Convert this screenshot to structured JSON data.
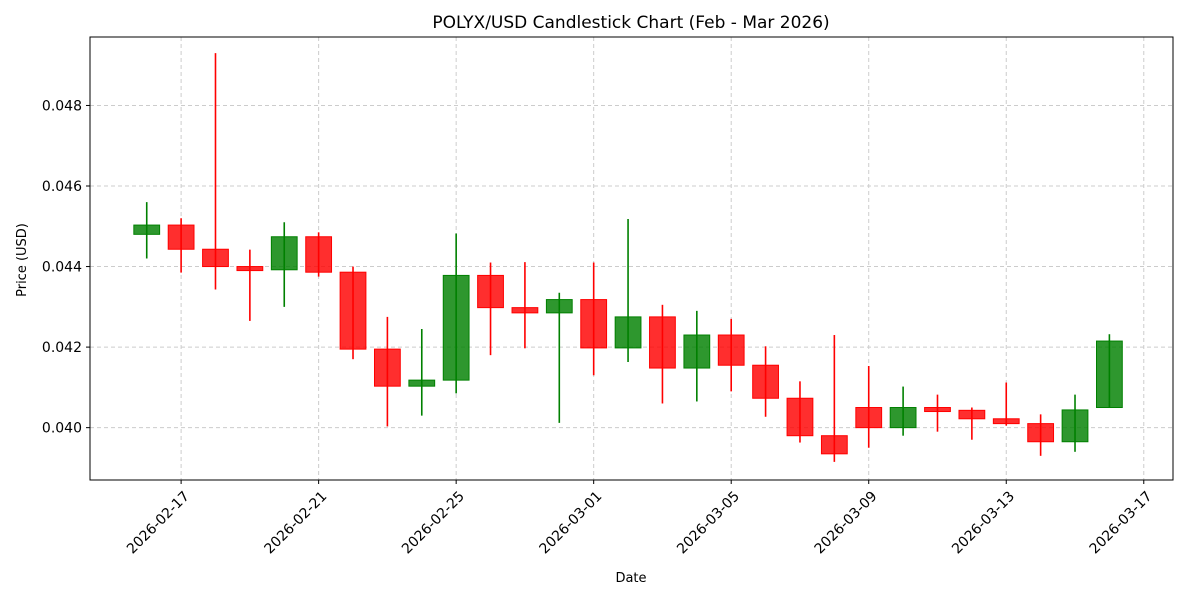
{
  "chart_data": {
    "type": "candlestick",
    "title": "POLYX/USD Candlestick Chart (Feb - Mar 2026)",
    "xlabel": "Date",
    "ylabel": "Price (USD)",
    "x_ticks": [
      "2026-02-17",
      "2026-02-21",
      "2026-02-25",
      "2026-03-01",
      "2026-03-05",
      "2026-03-09",
      "2026-03-13",
      "2026-03-17"
    ],
    "y_ticks": [
      "0.040",
      "0.042",
      "0.044",
      "0.046",
      "0.048"
    ],
    "y_tick_values": [
      0.04,
      0.042,
      0.044,
      0.046,
      0.048
    ],
    "x_range": [
      "2026-02-14",
      "2026-03-17"
    ],
    "ylim": [
      0.0387,
      0.0497
    ],
    "grid": true,
    "colors": {
      "up": "#008000",
      "down": "#ff0000"
    },
    "candles": [
      {
        "date": "2026-02-16",
        "open": 0.0448,
        "high": 0.0456,
        "low": 0.0442,
        "close": 0.04503
      },
      {
        "date": "2026-02-17",
        "open": 0.04503,
        "high": 0.0452,
        "low": 0.04385,
        "close": 0.04443
      },
      {
        "date": "2026-02-18",
        "open": 0.04443,
        "high": 0.0493,
        "low": 0.04343,
        "close": 0.044
      },
      {
        "date": "2026-02-19",
        "open": 0.044,
        "high": 0.04442,
        "low": 0.04265,
        "close": 0.0439
      },
      {
        "date": "2026-02-20",
        "open": 0.04392,
        "high": 0.0451,
        "low": 0.043,
        "close": 0.04474
      },
      {
        "date": "2026-02-21",
        "open": 0.04474,
        "high": 0.04485,
        "low": 0.04375,
        "close": 0.04386
      },
      {
        "date": "2026-02-22",
        "open": 0.04386,
        "high": 0.044,
        "low": 0.0417,
        "close": 0.04195
      },
      {
        "date": "2026-02-23",
        "open": 0.04195,
        "high": 0.04275,
        "low": 0.04003,
        "close": 0.04103
      },
      {
        "date": "2026-02-24",
        "open": 0.04103,
        "high": 0.04245,
        "low": 0.0403,
        "close": 0.04118
      },
      {
        "date": "2026-02-25",
        "open": 0.04118,
        "high": 0.04482,
        "low": 0.04085,
        "close": 0.04378
      },
      {
        "date": "2026-02-26",
        "open": 0.04378,
        "high": 0.0441,
        "low": 0.0418,
        "close": 0.04298
      },
      {
        "date": "2026-02-27",
        "open": 0.04298,
        "high": 0.04411,
        "low": 0.04197,
        "close": 0.04285
      },
      {
        "date": "2026-02-28",
        "open": 0.04285,
        "high": 0.04335,
        "low": 0.04012,
        "close": 0.04318
      },
      {
        "date": "2026-03-01",
        "open": 0.04318,
        "high": 0.0441,
        "low": 0.0413,
        "close": 0.04198
      },
      {
        "date": "2026-03-02",
        "open": 0.04198,
        "high": 0.04518,
        "low": 0.04163,
        "close": 0.04275
      },
      {
        "date": "2026-03-03",
        "open": 0.04275,
        "high": 0.04305,
        "low": 0.0406,
        "close": 0.04148
      },
      {
        "date": "2026-03-04",
        "open": 0.04148,
        "high": 0.0429,
        "low": 0.04065,
        "close": 0.0423
      },
      {
        "date": "2026-03-05",
        "open": 0.0423,
        "high": 0.0427,
        "low": 0.0409,
        "close": 0.04155
      },
      {
        "date": "2026-03-06",
        "open": 0.04155,
        "high": 0.04202,
        "low": 0.04027,
        "close": 0.04073
      },
      {
        "date": "2026-03-07",
        "open": 0.04073,
        "high": 0.04115,
        "low": 0.03963,
        "close": 0.0398
      },
      {
        "date": "2026-03-08",
        "open": 0.0398,
        "high": 0.0423,
        "low": 0.03915,
        "close": 0.03935
      },
      {
        "date": "2026-03-09",
        "open": 0.0405,
        "high": 0.04153,
        "low": 0.0395,
        "close": 0.04
      },
      {
        "date": "2026-03-10",
        "open": 0.04,
        "high": 0.04102,
        "low": 0.0398,
        "close": 0.0405
      },
      {
        "date": "2026-03-11",
        "open": 0.0405,
        "high": 0.04082,
        "low": 0.0399,
        "close": 0.0404
      },
      {
        "date": "2026-03-12",
        "open": 0.04043,
        "high": 0.0405,
        "low": 0.0397,
        "close": 0.04022
      },
      {
        "date": "2026-03-13",
        "open": 0.04022,
        "high": 0.04112,
        "low": 0.04005,
        "close": 0.0401
      },
      {
        "date": "2026-03-14",
        "open": 0.0401,
        "high": 0.04033,
        "low": 0.0393,
        "close": 0.03965
      },
      {
        "date": "2026-03-15",
        "open": 0.03965,
        "high": 0.04082,
        "low": 0.0394,
        "close": 0.04044
      },
      {
        "date": "2026-03-16",
        "open": 0.0405,
        "high": 0.04232,
        "low": 0.0405,
        "close": 0.04215
      }
    ]
  }
}
